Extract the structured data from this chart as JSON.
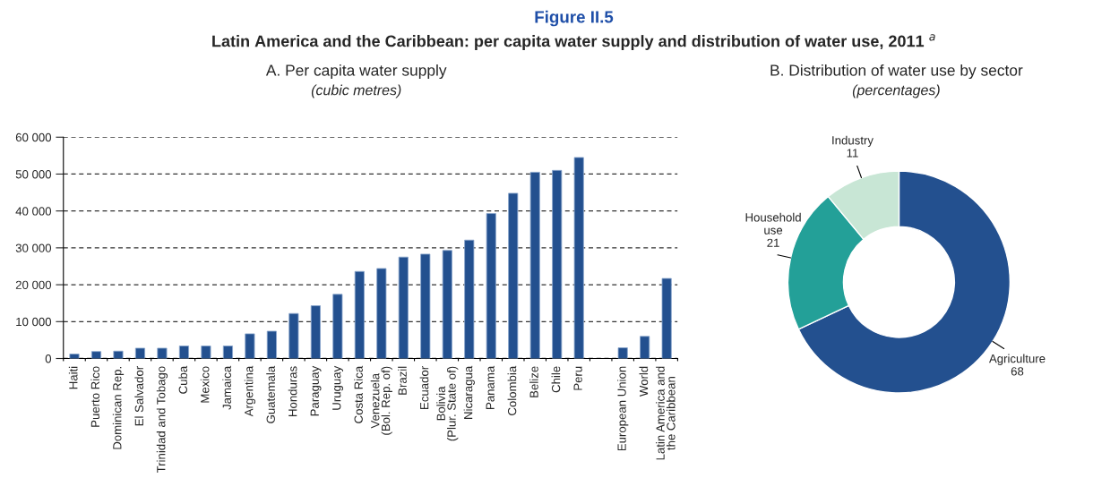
{
  "chart_data": [
    {
      "type": "bar",
      "title": "A. Per capita water supply",
      "subtitle": "(cubic metres)",
      "annotations": [
        "Figure II.5",
        "Latin America and the Caribbean: per capita water supply and distribution of water use, 2011 $^{a}$"
      ],
      "categories": [
        "Haiti",
        "Puerto Rico",
        "Dominican Rep.",
        "El Salvador",
        "Trinidad and Tobago",
        "Cuba",
        "Mexico",
        "Jamaica",
        "Argentina",
        "Guatemala",
        "Honduras",
        "Paraguay",
        "Uruguay",
        "Costa Rica",
        "Venezuela\n(Bol. Rep. of)",
        "Brazil",
        "Ecuador",
        "Bolivia\n(Plur. State of)",
        "Nicaragua",
        "Panama",
        "Colombia",
        "Belize",
        "Chile",
        "Peru",
        null,
        "European Union",
        "World",
        "Latin America and\nthe Caribbean"
      ],
      "values": [
        1200,
        1900,
        2000,
        2800,
        2800,
        3400,
        3400,
        3400,
        6700,
        7400,
        12200,
        14300,
        17400,
        23600,
        24400,
        27500,
        28300,
        29300,
        32100,
        39300,
        44800,
        50500,
        51000,
        54500,
        null,
        2900,
        6000,
        21700
      ],
      "color": "#23508f",
      "ylim": [
        0,
        60000
      ],
      "yticks": [
        0,
        {
          "value": 10000,
          "label": "10 000"
        },
        {
          "value": 20000,
          "label": "20 000"
        },
        {
          "value": 30000,
          "label": "30 000"
        },
        {
          "value": 40000,
          "label": "40 000"
        },
        {
          "value": 50000,
          "label": "50 000"
        },
        {
          "value": 60000,
          "label": "60 000"
        }
      ],
      "grid": "y"
    },
    {
      "type": "donut",
      "title": "B. Distribution of water use by sector",
      "subtitle": "(percentages)",
      "categories": [
        "Agriculture",
        "Household\nuse",
        "Industry"
      ],
      "values": [
        68,
        21,
        11
      ],
      "colors": [
        "#23508f",
        "#23a098",
        "#c8e6d5"
      ],
      "data_labels": true
    }
  ]
}
